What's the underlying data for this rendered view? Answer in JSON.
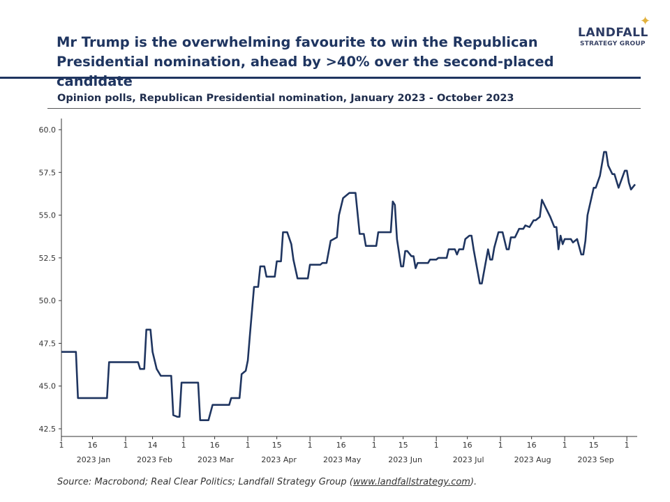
{
  "header": {
    "title_line1": "Mr Trump is the overwhelming favourite to win the Republican",
    "title_line2": "Presidential nomination, ahead by >40% over the second-placed candidate",
    "subtitle": "Opinion polls, Republican Presidential nomination, January 2023 - October 2023",
    "logo_main": "LANDFALL",
    "logo_sub": "STRATEGY GROUP",
    "brand_color": "#1f3560",
    "accent_color": "#e2b13c"
  },
  "footer": {
    "source_prefix": "Source: Macrobond; Real Clear Politics; Landfall Strategy Group (",
    "source_link": "www.landfallstrategy.com",
    "source_suffix": ")."
  },
  "chart_data": {
    "type": "line",
    "title": "",
    "xlabel": "",
    "ylabel": "",
    "ylim": [
      42.5,
      60.0
    ],
    "xlim": [
      "2023-01-01",
      "2023-10-06"
    ],
    "yticks": [
      "42.5",
      "45.0",
      "47.5",
      "50.0",
      "52.5",
      "55.0",
      "57.5",
      "60.0"
    ],
    "xticks": [
      {
        "date": "2023-01-01",
        "label": "1"
      },
      {
        "date": "2023-01-16",
        "label": "16"
      },
      {
        "date": "2023-02-01",
        "label": "1"
      },
      {
        "date": "2023-02-14",
        "label": "14"
      },
      {
        "date": "2023-03-01",
        "label": "1"
      },
      {
        "date": "2023-03-16",
        "label": "16"
      },
      {
        "date": "2023-04-01",
        "label": "1"
      },
      {
        "date": "2023-04-15",
        "label": "15"
      },
      {
        "date": "2023-05-01",
        "label": "1"
      },
      {
        "date": "2023-05-16",
        "label": "16"
      },
      {
        "date": "2023-06-01",
        "label": "1"
      },
      {
        "date": "2023-06-15",
        "label": "15"
      },
      {
        "date": "2023-07-01",
        "label": "1"
      },
      {
        "date": "2023-07-16",
        "label": "16"
      },
      {
        "date": "2023-08-01",
        "label": "1"
      },
      {
        "date": "2023-08-16",
        "label": "16"
      },
      {
        "date": "2023-09-01",
        "label": "1"
      },
      {
        "date": "2023-09-15",
        "label": "15"
      },
      {
        "date": "2023-10-01",
        "label": "1"
      }
    ],
    "month_labels": [
      "2023 Jan",
      "2023 Feb",
      "2023 Mar",
      "2023 Apr",
      "2023 May",
      "2023 Jun",
      "2023 Jul",
      "2023 Aug",
      "2023 Sep"
    ],
    "grid": false,
    "line_color": "#1f3560",
    "series": [
      {
        "points": [
          [
            "2023-01-01",
            47.0
          ],
          [
            "2023-01-08",
            47.0
          ],
          [
            "2023-01-09",
            44.3
          ],
          [
            "2023-01-23",
            44.3
          ],
          [
            "2023-01-24",
            46.4
          ],
          [
            "2023-02-07",
            46.4
          ],
          [
            "2023-02-08",
            46.0
          ],
          [
            "2023-02-10",
            46.0
          ],
          [
            "2023-02-11",
            48.3
          ],
          [
            "2023-02-13",
            48.3
          ],
          [
            "2023-02-14",
            47.0
          ],
          [
            "2023-02-16",
            46.0
          ],
          [
            "2023-02-18",
            45.6
          ],
          [
            "2023-02-23",
            45.6
          ],
          [
            "2023-02-24",
            43.3
          ],
          [
            "2023-02-26",
            43.2
          ],
          [
            "2023-02-27",
            43.2
          ],
          [
            "2023-02-28",
            45.2
          ],
          [
            "2023-03-08",
            45.2
          ],
          [
            "2023-03-09",
            43.0
          ],
          [
            "2023-03-13",
            43.0
          ],
          [
            "2023-03-15",
            43.9
          ],
          [
            "2023-03-23",
            43.9
          ],
          [
            "2023-03-24",
            44.3
          ],
          [
            "2023-03-28",
            44.3
          ],
          [
            "2023-03-29",
            45.7
          ],
          [
            "2023-03-31",
            45.9
          ],
          [
            "2023-04-01",
            46.5
          ],
          [
            "2023-04-02",
            48.0
          ],
          [
            "2023-04-04",
            50.8
          ],
          [
            "2023-04-06",
            50.8
          ],
          [
            "2023-04-07",
            52.0
          ],
          [
            "2023-04-09",
            52.0
          ],
          [
            "2023-04-10",
            51.4
          ],
          [
            "2023-04-14",
            51.4
          ],
          [
            "2023-04-15",
            52.3
          ],
          [
            "2023-04-17",
            52.3
          ],
          [
            "2023-04-18",
            54.0
          ],
          [
            "2023-04-20",
            54.0
          ],
          [
            "2023-04-22",
            53.3
          ],
          [
            "2023-04-23",
            52.4
          ],
          [
            "2023-04-25",
            51.3
          ],
          [
            "2023-04-30",
            51.3
          ],
          [
            "2023-05-01",
            52.1
          ],
          [
            "2023-05-06",
            52.1
          ],
          [
            "2023-05-07",
            52.2
          ],
          [
            "2023-05-09",
            52.2
          ],
          [
            "2023-05-11",
            53.5
          ],
          [
            "2023-05-14",
            53.7
          ],
          [
            "2023-05-15",
            55.0
          ],
          [
            "2023-05-17",
            56.0
          ],
          [
            "2023-05-20",
            56.3
          ],
          [
            "2023-05-23",
            56.3
          ],
          [
            "2023-05-25",
            53.9
          ],
          [
            "2023-05-27",
            53.9
          ],
          [
            "2023-05-28",
            53.2
          ],
          [
            "2023-06-02",
            53.2
          ],
          [
            "2023-06-03",
            54.0
          ],
          [
            "2023-06-09",
            54.0
          ],
          [
            "2023-06-10",
            55.8
          ],
          [
            "2023-06-11",
            55.6
          ],
          [
            "2023-06-12",
            53.6
          ],
          [
            "2023-06-14",
            52.0
          ],
          [
            "2023-06-15",
            52.0
          ],
          [
            "2023-06-16",
            52.9
          ],
          [
            "2023-06-17",
            52.9
          ],
          [
            "2023-06-19",
            52.6
          ],
          [
            "2023-06-20",
            52.6
          ],
          [
            "2023-06-21",
            51.9
          ],
          [
            "2023-06-22",
            52.2
          ],
          [
            "2023-06-27",
            52.2
          ],
          [
            "2023-06-28",
            52.4
          ],
          [
            "2023-07-01",
            52.4
          ],
          [
            "2023-07-02",
            52.5
          ],
          [
            "2023-07-06",
            52.5
          ],
          [
            "2023-07-07",
            53.0
          ],
          [
            "2023-07-10",
            53.0
          ],
          [
            "2023-07-11",
            52.7
          ],
          [
            "2023-07-12",
            53.0
          ],
          [
            "2023-07-14",
            53.0
          ],
          [
            "2023-07-15",
            53.6
          ],
          [
            "2023-07-17",
            53.8
          ],
          [
            "2023-07-18",
            53.8
          ],
          [
            "2023-07-19",
            53.0
          ],
          [
            "2023-07-22",
            51.0
          ],
          [
            "2023-07-23",
            51.0
          ],
          [
            "2023-07-26",
            53.0
          ],
          [
            "2023-07-27",
            52.4
          ],
          [
            "2023-07-28",
            52.4
          ],
          [
            "2023-07-29",
            53.1
          ],
          [
            "2023-07-31",
            54.0
          ],
          [
            "2023-08-02",
            54.0
          ],
          [
            "2023-08-04",
            53.0
          ],
          [
            "2023-08-05",
            53.0
          ],
          [
            "2023-08-06",
            53.7
          ],
          [
            "2023-08-08",
            53.7
          ],
          [
            "2023-08-10",
            54.2
          ],
          [
            "2023-08-12",
            54.2
          ],
          [
            "2023-08-13",
            54.4
          ],
          [
            "2023-08-15",
            54.3
          ],
          [
            "2023-08-17",
            54.7
          ],
          [
            "2023-08-18",
            54.7
          ],
          [
            "2023-08-20",
            54.9
          ],
          [
            "2023-08-21",
            55.9
          ],
          [
            "2023-08-23",
            55.4
          ],
          [
            "2023-08-25",
            54.9
          ],
          [
            "2023-08-27",
            54.3
          ],
          [
            "2023-08-28",
            54.3
          ],
          [
            "2023-08-29",
            53.0
          ],
          [
            "2023-08-30",
            53.8
          ],
          [
            "2023-08-31",
            53.3
          ],
          [
            "2023-09-01",
            53.6
          ],
          [
            "2023-09-04",
            53.6
          ],
          [
            "2023-09-05",
            53.4
          ],
          [
            "2023-09-07",
            53.6
          ],
          [
            "2023-09-09",
            52.7
          ],
          [
            "2023-09-10",
            52.7
          ],
          [
            "2023-09-11",
            53.5
          ],
          [
            "2023-09-12",
            55.0
          ],
          [
            "2023-09-15",
            56.6
          ],
          [
            "2023-09-16",
            56.6
          ],
          [
            "2023-09-18",
            57.3
          ],
          [
            "2023-09-20",
            58.7
          ],
          [
            "2023-09-21",
            58.7
          ],
          [
            "2023-09-22",
            57.9
          ],
          [
            "2023-09-24",
            57.4
          ],
          [
            "2023-09-25",
            57.4
          ],
          [
            "2023-09-27",
            56.6
          ],
          [
            "2023-09-30",
            57.6
          ],
          [
            "2023-10-01",
            57.6
          ],
          [
            "2023-10-02",
            56.9
          ],
          [
            "2023-10-03",
            56.5
          ],
          [
            "2023-10-05",
            56.8
          ]
        ]
      }
    ]
  }
}
